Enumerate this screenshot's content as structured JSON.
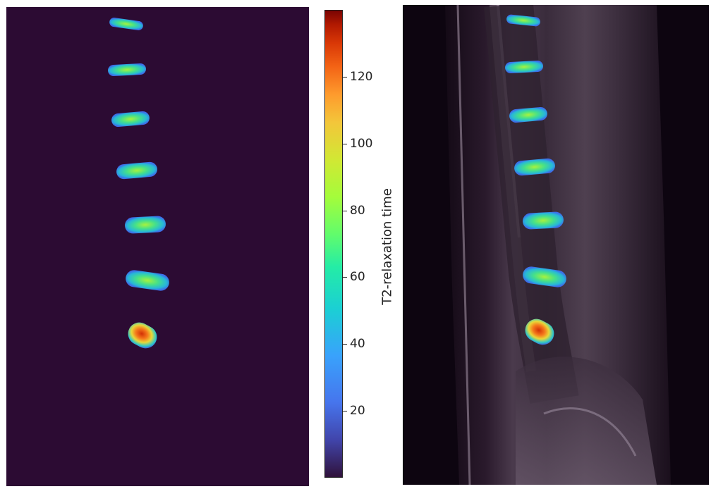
{
  "colorbar": {
    "label": "T2-relaxation time",
    "min": 0,
    "max": 140,
    "ticks": [
      "20",
      "40",
      "60",
      "80",
      "100",
      "120"
    ],
    "colormap": "turbo"
  },
  "left_panel": {
    "background": "#2c0b33",
    "content": "T2 relaxation time maps of lumbar intervertebral discs"
  },
  "right_panel": {
    "content": "Sagittal MRI of lumbar spine with T2 disc map overlay"
  },
  "discs": [
    {
      "level": 1,
      "mean_t2": 52
    },
    {
      "level": 2,
      "mean_t2": 50
    },
    {
      "level": 3,
      "mean_t2": 62
    },
    {
      "level": 4,
      "mean_t2": 58
    },
    {
      "level": 5,
      "mean_t2": 55
    },
    {
      "level": 6,
      "mean_t2": 60
    },
    {
      "level": 7,
      "mean_t2": 120
    }
  ]
}
